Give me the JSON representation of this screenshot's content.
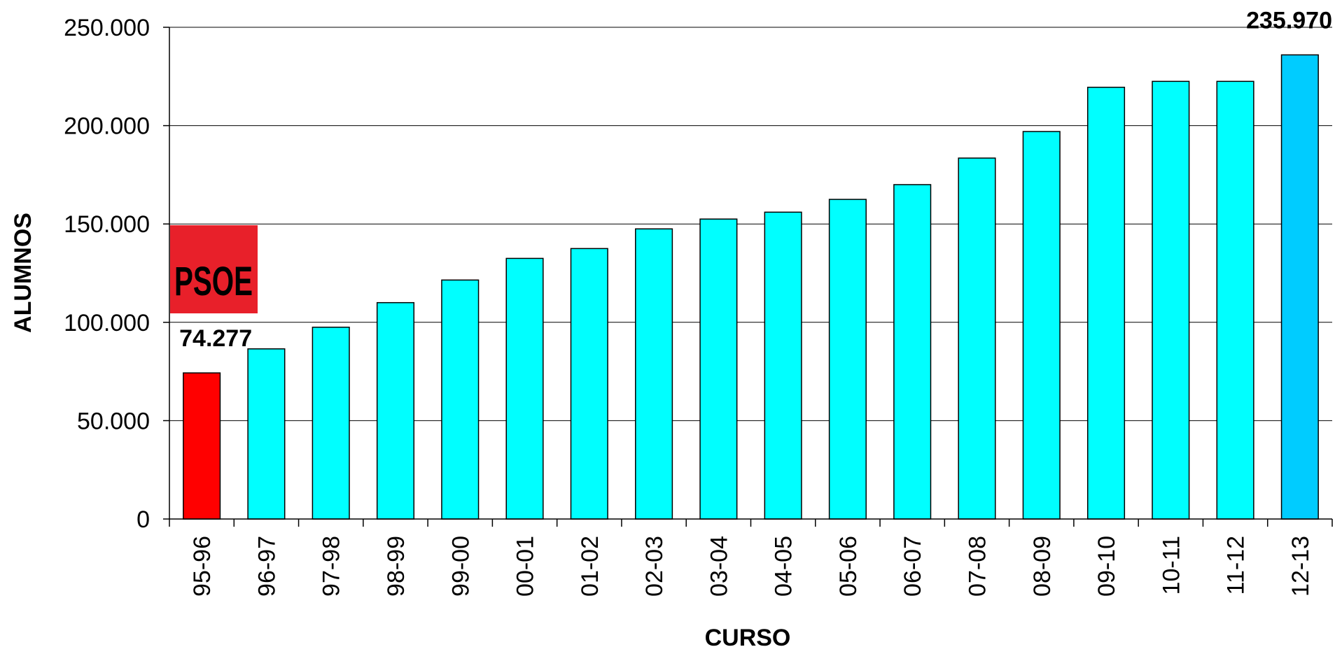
{
  "chart_data": {
    "type": "bar",
    "xlabel": "CURSO",
    "ylabel": "ALUMNOS",
    "ylim": [
      0,
      250000
    ],
    "yticks": [
      0,
      50000,
      100000,
      150000,
      200000,
      250000
    ],
    "ytick_labels": [
      "0",
      "50.000",
      "100.000",
      "150.000",
      "200.000",
      "250.000"
    ],
    "grid": true,
    "categories": [
      "95-96",
      "96-97",
      "97-98",
      "98-99",
      "99-00",
      "00-01",
      "01-02",
      "02-03",
      "03-04",
      "04-05",
      "05-06",
      "06-07",
      "07-08",
      "08-09",
      "09-10",
      "10-11",
      "11-12",
      "12-13"
    ],
    "values": [
      74277,
      86500,
      97500,
      110000,
      121500,
      132500,
      137500,
      147500,
      152500,
      156000,
      162500,
      170000,
      183500,
      197000,
      219500,
      222500,
      222500,
      235970
    ],
    "bar_colors": [
      "#ff0000",
      "#00ffff",
      "#00ffff",
      "#00ffff",
      "#00ffff",
      "#00ffff",
      "#00ffff",
      "#00ffff",
      "#00ffff",
      "#00ffff",
      "#00ffff",
      "#00ffff",
      "#00ffff",
      "#00ffff",
      "#00ffff",
      "#00ffff",
      "#00ffff",
      "#00ccff"
    ],
    "data_labels": [
      {
        "index": 0,
        "text": "74.277"
      },
      {
        "index": 17,
        "text": "235.970"
      }
    ],
    "logo": {
      "text": "PSOE",
      "color": "#e8202a"
    }
  }
}
